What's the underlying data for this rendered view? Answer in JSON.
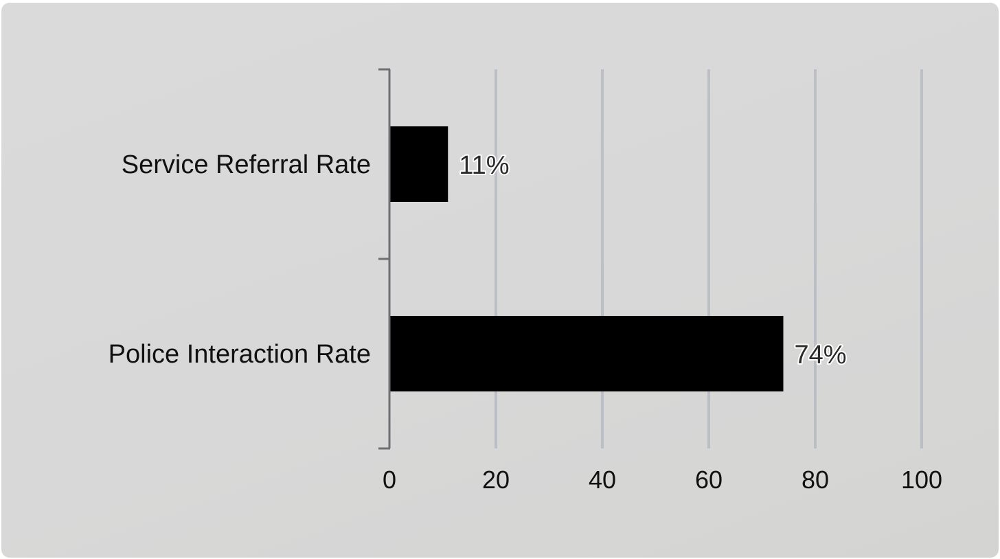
{
  "chart_data": {
    "type": "bar",
    "orientation": "horizontal",
    "categories": [
      "Service Referral Rate",
      "Police Interaction Rate"
    ],
    "values": [
      11,
      74
    ],
    "data_labels": [
      "11%",
      "74%"
    ],
    "title": "",
    "xlabel": "",
    "ylabel": "",
    "xlim": [
      0,
      100
    ],
    "xticks": [
      "0",
      "20",
      "40",
      "60",
      "80",
      "100"
    ],
    "grid": true,
    "legend": "none",
    "colors": {
      "bar": "#000000",
      "grid": "#a9aebb",
      "axis": "#6e6e74",
      "background": "#d9d9d9"
    }
  }
}
